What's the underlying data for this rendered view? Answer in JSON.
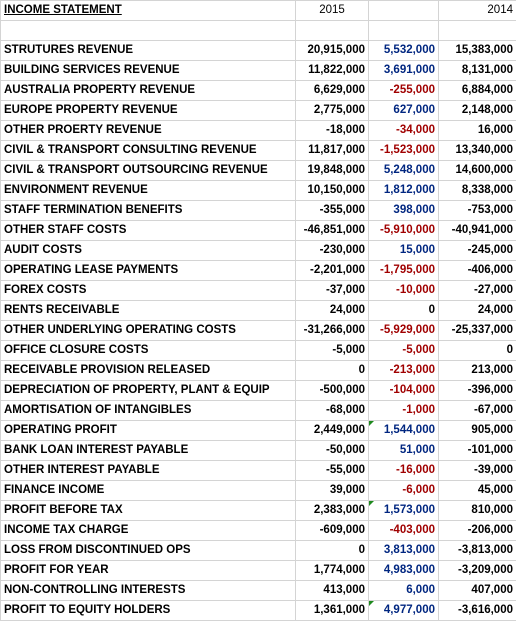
{
  "header": {
    "title": "INCOME STATEMENT",
    "year_current": "2015",
    "year_prior": "2014"
  },
  "rows": [
    {
      "label": "STRUTURES REVENUE",
      "v2015": "20,915,000",
      "variance": "5,532,000",
      "v2014": "15,383,000",
      "bold": false
    },
    {
      "label": "BUILDING SERVICES REVENUE",
      "v2015": "11,822,000",
      "variance": "3,691,000",
      "v2014": "8,131,000",
      "bold": false
    },
    {
      "label": "AUSTRALIA PROPERTY REVENUE",
      "v2015": "6,629,000",
      "variance": "-255,000",
      "v2014": "6,884,000",
      "bold": false
    },
    {
      "label": "EUROPE PROPERTY REVENUE",
      "v2015": "2,775,000",
      "variance": "627,000",
      "v2014": "2,148,000",
      "bold": false
    },
    {
      "label": "OTHER PROERTY REVENUE",
      "v2015": "-18,000",
      "variance": "-34,000",
      "v2014": "16,000",
      "bold": false
    },
    {
      "label": "CIVIL & TRANSPORT CONSULTING REVENUE",
      "v2015": "11,817,000",
      "variance": "-1,523,000",
      "v2014": "13,340,000",
      "bold": false
    },
    {
      "label": "CIVIL & TRANSPORT OUTSOURCING REVENUE",
      "v2015": "19,848,000",
      "variance": "5,248,000",
      "v2014": "14,600,000",
      "bold": false
    },
    {
      "label": "ENVIRONMENT REVENUE",
      "v2015": "10,150,000",
      "variance": "1,812,000",
      "v2014": "8,338,000",
      "bold": false
    },
    {
      "label": "STAFF TERMINATION BENEFITS",
      "v2015": "-355,000",
      "variance": "398,000",
      "v2014": "-753,000",
      "bold": false
    },
    {
      "label": "OTHER STAFF COSTS",
      "v2015": "-46,851,000",
      "variance": "-5,910,000",
      "v2014": "-40,941,000",
      "bold": false
    },
    {
      "label": "AUDIT COSTS",
      "v2015": "-230,000",
      "variance": "15,000",
      "v2014": "-245,000",
      "bold": false
    },
    {
      "label": "OPERATING LEASE PAYMENTS",
      "v2015": "-2,201,000",
      "variance": "-1,795,000",
      "v2014": "-406,000",
      "bold": false
    },
    {
      "label": "FOREX COSTS",
      "v2015": "-37,000",
      "variance": "-10,000",
      "v2014": "-27,000",
      "bold": false
    },
    {
      "label": "RENTS RECEIVABLE",
      "v2015": "24,000",
      "variance": "0",
      "v2014": "24,000",
      "bold": false
    },
    {
      "label": "OTHER UNDERLYING OPERATING COSTS",
      "v2015": "-31,266,000",
      "variance": "-5,929,000",
      "v2014": "-25,337,000",
      "bold": false
    },
    {
      "label": "OFFICE CLOSURE COSTS",
      "v2015": "-5,000",
      "variance": "-5,000",
      "v2014": "0",
      "bold": false
    },
    {
      "label": "RECEIVABLE PROVISION RELEASED",
      "v2015": "0",
      "variance": "-213,000",
      "v2014": "213,000",
      "bold": false
    },
    {
      "label": "DEPRECIATION OF PROPERTY, PLANT & EQUIP",
      "v2015": "-500,000",
      "variance": "-104,000",
      "v2014": "-396,000",
      "bold": false
    },
    {
      "label": "AMORTISATION OF INTANGIBLES",
      "v2015": "-68,000",
      "variance": "-1,000",
      "v2014": "-67,000",
      "bold": false
    },
    {
      "label": "OPERATING PROFIT",
      "v2015": "2,449,000",
      "variance": "1,544,000",
      "v2014": "905,000",
      "bold": true,
      "flag": true
    },
    {
      "label": "BANK LOAN INTEREST PAYABLE",
      "v2015": "-50,000",
      "variance": "51,000",
      "v2014": "-101,000",
      "bold": false
    },
    {
      "label": "OTHER INTEREST PAYABLE",
      "v2015": "-55,000",
      "variance": "-16,000",
      "v2014": "-39,000",
      "bold": false
    },
    {
      "label": "FINANCE INCOME",
      "v2015": "39,000",
      "variance": "-6,000",
      "v2014": "45,000",
      "bold": false
    },
    {
      "label": "PROFIT BEFORE TAX",
      "v2015": "2,383,000",
      "variance": "1,573,000",
      "v2014": "810,000",
      "bold": true,
      "flag": true
    },
    {
      "label": "INCOME TAX CHARGE",
      "v2015": "-609,000",
      "variance": "-403,000",
      "v2014": "-206,000",
      "bold": false
    },
    {
      "label": "LOSS FROM DISCONTINUED OPS",
      "v2015": "0",
      "variance": "3,813,000",
      "v2014": "-3,813,000",
      "bold": false
    },
    {
      "label": "PROFIT FOR YEAR",
      "v2015": "1,774,000",
      "variance": "4,983,000",
      "v2014": "-3,209,000",
      "bold": true
    },
    {
      "label": "NON-CONTROLLING INTERESTS",
      "v2015": "413,000",
      "variance": "6,000",
      "v2014": "407,000",
      "bold": false
    },
    {
      "label": "PROFIT TO EQUITY HOLDERS",
      "v2015": "1,361,000",
      "variance": "4,977,000",
      "v2014": "-3,616,000",
      "bold": true,
      "flag": true
    }
  ]
}
